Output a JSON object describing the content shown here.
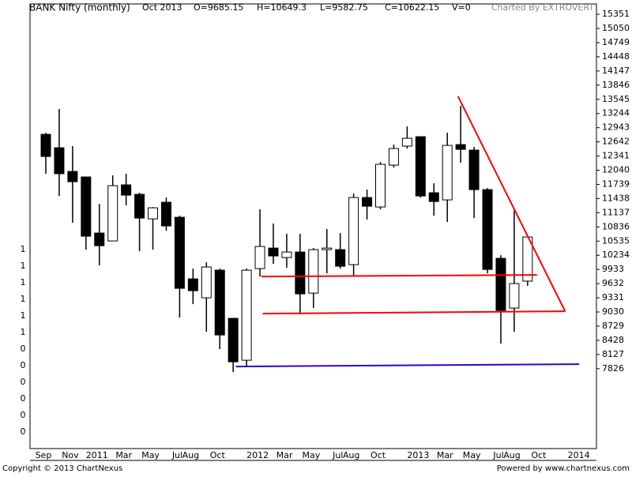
{
  "chart_data": {
    "type": "candlestick",
    "title": "BANK Nifty (monthly)",
    "header": [
      "Oct 2013",
      "O=9685.15",
      "H=10649.3",
      "L=9582.75",
      "C=10622.15",
      "V=0"
    ],
    "credit": "Charted By EXTROVERT",
    "copyright": "Copyright © 2013 ChartNexus",
    "powered": "Powered by www.chartnexus.com",
    "categories": [
      "Sep",
      null,
      "Nov",
      null,
      "2011",
      null,
      "Mar",
      null,
      "May",
      null,
      "Jul",
      "Aug",
      null,
      "Oct",
      null,
      null,
      "2012",
      null,
      "Mar",
      null,
      "May",
      null,
      "Jul",
      "Aug",
      null,
      "Oct",
      null,
      null,
      "2013",
      null,
      "Mar",
      null,
      "May",
      null,
      "Jul",
      "Aug",
      null,
      "Oct",
      null,
      null,
      "2014"
    ],
    "open": [
      null,
      12802,
      12517,
      12014,
      11897,
      10706,
      10538,
      11729,
      11528,
      11007,
      11360,
      11041,
      9733,
      9331,
      9918,
      8895,
      8006,
      9951,
      10387,
      10186,
      10303,
      9431,
      10354,
      10354,
      10035,
      11460,
      11259,
      12148,
      12551,
      12752,
      11561,
      11410,
      12584,
      12467,
      11628,
      10169,
      9113,
      9685.15,
      null,
      null,
      null
    ],
    "high": [
      null,
      12835,
      13339,
      12551,
      11897,
      11326,
      11930,
      11964,
      11561,
      11259,
      11460,
      11074,
      9951,
      10085,
      9951,
      8895,
      9951,
      11209,
      10907,
      10689,
      10689,
      10387,
      10790,
      10706,
      11544,
      11628,
      12215,
      12584,
      12970,
      12752,
      11762,
      12835,
      13405,
      12534,
      11662,
      10236,
      11209,
      10649.3,
      null,
      null,
      null
    ],
    "low": [
      null,
      11966,
      11494,
      10924,
      10354,
      10018,
      10538,
      11293,
      10320,
      10354,
      10756,
      8911,
      9197,
      8610,
      8241,
      7754,
      7872,
      9783,
      10052,
      9968,
      8979,
      9113,
      9851,
      9951,
      9783,
      10991,
      11209,
      12098,
      12500,
      11460,
      11074,
      10941,
      12198,
      11024,
      9851,
      8358,
      8610,
      9582.75,
      null,
      null,
      null
    ],
    "close": [
      null,
      12332,
      11966,
      11796,
      10639,
      10437,
      11712,
      11511,
      11024,
      11242,
      10857,
      9532,
      9482,
      9985,
      8542,
      7972,
      9918,
      10421,
      10220,
      10303,
      9415,
      10354,
      10387,
      10002,
      11460,
      11276,
      12165,
      12500,
      12718,
      11494,
      11376,
      12567,
      12483,
      11628,
      9934,
      9062,
      9633,
      10622.15,
      null,
      null,
      null
    ],
    "up_color": "#ffffff",
    "down_color": "#000000",
    "ylim": [
      6130,
      15570
    ],
    "yticks": [
      15351,
      15050,
      14749,
      14448,
      14147,
      13846,
      13545,
      13244,
      12943,
      12642,
      12341,
      12040,
      11739,
      11438,
      11137,
      10836,
      10535,
      10234,
      9933,
      9632,
      9331,
      9030,
      8729,
      8428,
      8127,
      7826
    ],
    "left_labels": [
      "1",
      "1",
      "1",
      "1",
      "1",
      "1",
      "0",
      "0",
      "0",
      "0",
      "0",
      "0"
    ],
    "lines": [
      {
        "color": "#ff0000",
        "points": [
          [
            31.8,
            13607
          ],
          [
            39.8,
            9046
          ]
        ]
      },
      {
        "color": "#ff0000",
        "points": [
          [
            17.1,
            9783
          ],
          [
            37.7,
            9817
          ]
        ]
      },
      {
        "color": "#ff0000",
        "points": [
          [
            17.2,
            8995
          ],
          [
            39.8,
            9046
          ]
        ]
      },
      {
        "color": "#3300cc",
        "points": [
          [
            15.2,
            7872
          ],
          [
            40.85,
            7922
          ]
        ]
      }
    ]
  }
}
